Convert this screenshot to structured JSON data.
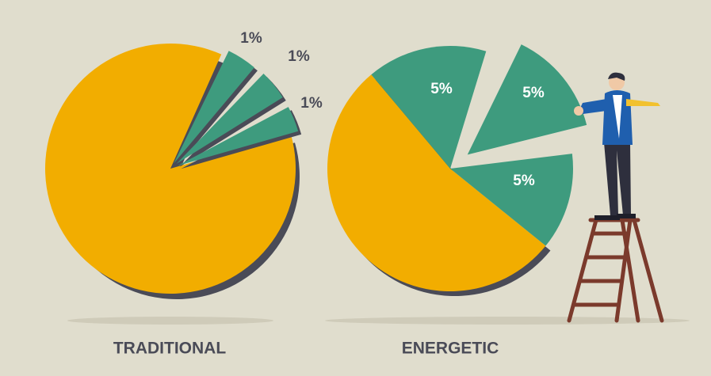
{
  "pies": [
    {
      "label": "TRADITIONAL",
      "slices": [
        "1%",
        "1%",
        "1%"
      ]
    },
    {
      "label": "ENERGETIC",
      "slices": [
        "5%",
        "5%",
        "5%"
      ]
    }
  ]
}
